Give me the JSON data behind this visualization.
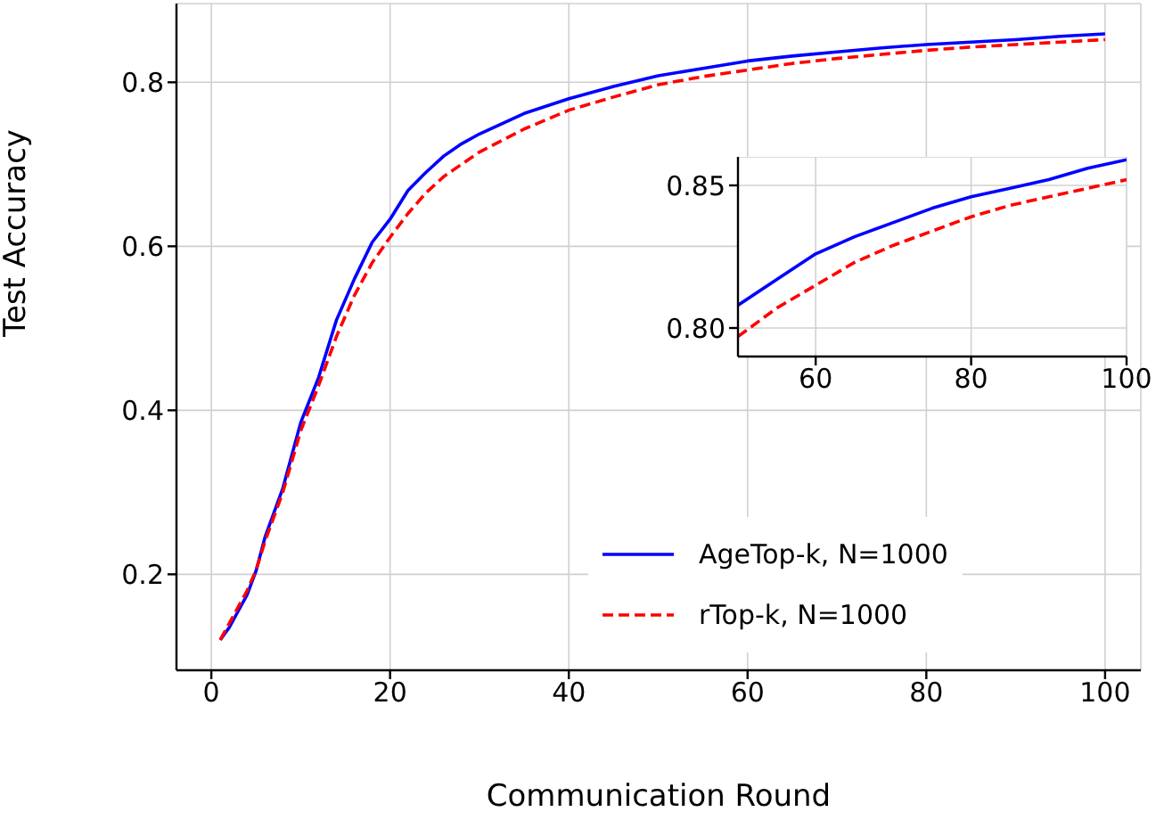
{
  "chart_data": [
    {
      "type": "line",
      "xlabel": "Communication Round",
      "ylabel": "Test Accuracy",
      "x": [
        1,
        2,
        3,
        4,
        5,
        6,
        7,
        8,
        10,
        12,
        14,
        16,
        18,
        20,
        22,
        24,
        26,
        28,
        30,
        35,
        40,
        45,
        50,
        55,
        60,
        65,
        70,
        75,
        80,
        85,
        90,
        95,
        100
      ],
      "series": [
        {
          "name": "AgeTop-k, N=1000",
          "color": "#0000ff",
          "line_style": "solid",
          "values": [
            0.12,
            0.135,
            0.155,
            0.175,
            0.204,
            0.245,
            0.275,
            0.305,
            0.385,
            0.44,
            0.51,
            0.56,
            0.605,
            0.633,
            0.668,
            0.69,
            0.71,
            0.725,
            0.737,
            0.762,
            0.78,
            0.795,
            0.808,
            0.817,
            0.826,
            0.832,
            0.837,
            0.842,
            0.846,
            0.849,
            0.852,
            0.856,
            0.859
          ]
        },
        {
          "name": "rTop-k, N=1000",
          "color": "#ff0000",
          "line_style": "dashed",
          "values": [
            0.12,
            0.14,
            0.16,
            0.18,
            0.205,
            0.24,
            0.27,
            0.3,
            0.375,
            0.43,
            0.49,
            0.54,
            0.58,
            0.611,
            0.64,
            0.665,
            0.685,
            0.7,
            0.715,
            0.743,
            0.766,
            0.782,
            0.797,
            0.807,
            0.815,
            0.823,
            0.829,
            0.834,
            0.839,
            0.843,
            0.846,
            0.849,
            0.852
          ]
        }
      ],
      "xlim": [
        -3.9,
        104
      ],
      "ylim": [
        0.083,
        0.896
      ],
      "xticks": [
        0,
        20,
        40,
        60,
        80,
        100
      ],
      "yticks": [
        0.2,
        0.4,
        0.6,
        0.8
      ],
      "grid": true,
      "legend": "bottom right",
      "marker": "none"
    },
    {
      "type": "line",
      "x": [
        50,
        55,
        60,
        65,
        70,
        75,
        80,
        85,
        90,
        95,
        100
      ],
      "series": [
        {
          "color": "#0000ff",
          "line_style": "solid",
          "values": [
            0.808,
            0.817,
            0.826,
            0.832,
            0.837,
            0.842,
            0.846,
            0.849,
            0.852,
            0.856,
            0.859
          ]
        },
        {
          "color": "#ff0000",
          "line_style": "dashed",
          "values": [
            0.797,
            0.807,
            0.815,
            0.823,
            0.829,
            0.834,
            0.839,
            0.843,
            0.846,
            0.849,
            0.852
          ]
        }
      ],
      "xlim": [
        50,
        100
      ],
      "ylim": [
        0.79,
        0.86
      ],
      "xticks": [
        60,
        80,
        100
      ],
      "yticks": [
        {
          "value": 0.8,
          "label": "0.80"
        },
        0.85
      ],
      "grid": true,
      "marker": "none"
    }
  ]
}
